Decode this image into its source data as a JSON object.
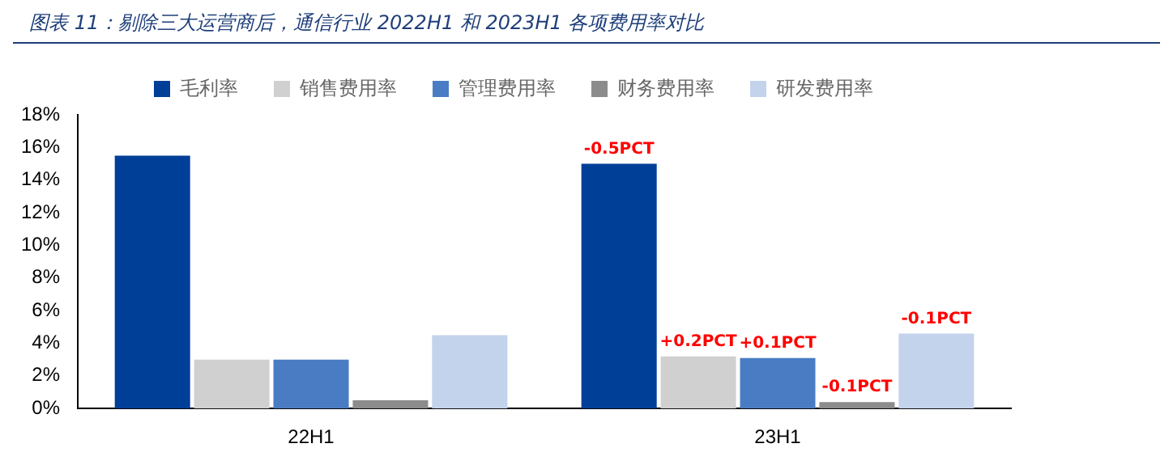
{
  "chart_data": {
    "type": "bar",
    "title": "图表 11：剔除三大运营商后，通信行业 2022H1 和 2023H1 各项费用率对比",
    "categories": [
      "22H1",
      "23H1"
    ],
    "series": [
      {
        "name": "毛利率",
        "color": "#003f98",
        "values": [
          15.5,
          15.0
        ]
      },
      {
        "name": "销售费用率",
        "color": "#d0d0d0",
        "values": [
          3.0,
          3.2
        ]
      },
      {
        "name": "管理费用率",
        "color": "#4a7cc4",
        "values": [
          3.0,
          3.1
        ]
      },
      {
        "name": "财务费用率",
        "color": "#8c8c8c",
        "values": [
          0.5,
          0.4
        ]
      },
      {
        "name": "研发费用率",
        "color": "#c3d3ec",
        "values": [
          4.5,
          4.6
        ]
      }
    ],
    "ylim": [
      0,
      18
    ],
    "yticks": [
      {
        "value": 0,
        "label": "0%"
      },
      {
        "value": 2,
        "label": "2%"
      },
      {
        "value": 4,
        "label": "4%"
      },
      {
        "value": 6,
        "label": "6%"
      },
      {
        "value": 8,
        "label": "8%"
      },
      {
        "value": 10,
        "label": "10%"
      },
      {
        "value": 12,
        "label": "12%"
      },
      {
        "value": 14,
        "label": "14%"
      },
      {
        "value": 16,
        "label": "16%"
      },
      {
        "value": 18,
        "label": "18%"
      }
    ],
    "annotations": [
      "-0.5PCT",
      "+0.2PCT",
      "+0.1PCT",
      "-0.1PCT",
      "-0.1PCT"
    ],
    "grid": false,
    "legend": "top"
  }
}
